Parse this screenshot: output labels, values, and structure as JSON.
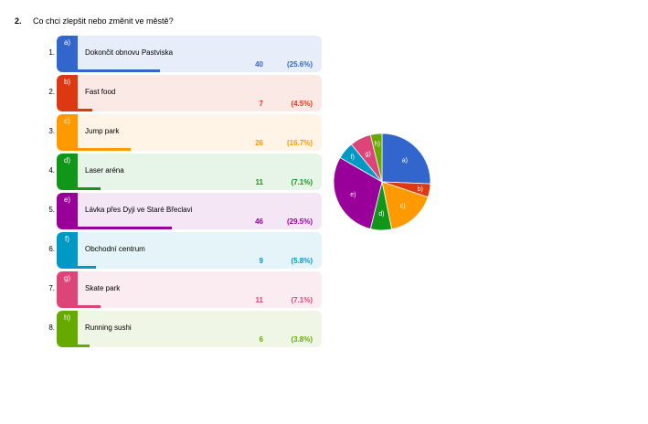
{
  "question": {
    "number": "2.",
    "title": "Co chci zlepšit nebo změnit ve městě?"
  },
  "chart_data": {
    "type": "bar",
    "categories": [
      "Dokončit obnovu Pastviska",
      "Fast food",
      "Jump park",
      "Laser aréna",
      "Lávka přes Dyji ve Staré Břeclavi",
      "Obchodní centrum",
      "Skate park",
      "Running sushi"
    ],
    "letters": [
      "a)",
      "b)",
      "c)",
      "d)",
      "e)",
      "f)",
      "g)",
      "h)"
    ],
    "indices": [
      "1.",
      "2.",
      "3.",
      "4.",
      "5.",
      "6.",
      "7.",
      "8."
    ],
    "values": [
      40,
      7,
      26,
      11,
      46,
      9,
      11,
      6
    ],
    "percent_labels": [
      "(25.6%)",
      "(4.5%)",
      "(16.7%)",
      "(7.1%)",
      "(29.5%)",
      "(5.8%)",
      "(7.1%)",
      "(3.8%)"
    ],
    "colors": [
      "#3366cc",
      "#dc3912",
      "#ff9900",
      "#109618",
      "#990099",
      "#0099c6",
      "#dd4477",
      "#66aa00"
    ],
    "row_backgrounds": [
      "#e8eef9",
      "#fbe9e6",
      "#fff4e5",
      "#e7f4e8",
      "#f4e6f4",
      "#e5f4f9",
      "#fbecf1",
      "#eff6e5"
    ],
    "pie": {
      "type": "pie",
      "slice_labels": [
        "a)",
        "b)",
        "c)",
        "d)",
        "e)",
        "f)",
        "g)",
        "h)"
      ],
      "values": [
        40,
        7,
        26,
        11,
        46,
        9,
        11,
        6
      ]
    }
  }
}
